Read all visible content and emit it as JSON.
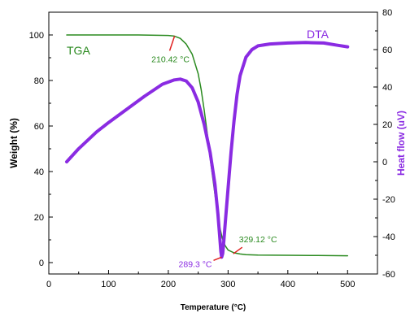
{
  "chart_data": {
    "type": "line",
    "xlabel": "Temperature (°C)",
    "ylabel": "Weight (%)",
    "y2label": "Heat flow (uV)",
    "xlim": [
      0,
      550
    ],
    "ylim": [
      -5,
      110
    ],
    "y2lim": [
      -60,
      80
    ],
    "xticks": [
      "0",
      "100",
      "200",
      "300",
      "400",
      "500"
    ],
    "yticks": [
      "0",
      "20",
      "40",
      "60",
      "80",
      "100"
    ],
    "y2ticks": [
      "-60",
      "-40",
      "-20",
      "0",
      "20",
      "40",
      "60",
      "80"
    ],
    "grid": false,
    "colors": {
      "tga": "#2a8a1f",
      "dta": "#8a2be2",
      "annotation_pointer": "#e02020"
    },
    "series": [
      {
        "name": "TGA",
        "axis": "left",
        "x": [
          30,
          100,
          150,
          200,
          210,
          220,
          230,
          240,
          250,
          255,
          260,
          265,
          270,
          275,
          280,
          285,
          290,
          295,
          300,
          310,
          320,
          330,
          350,
          400,
          450,
          500
        ],
        "y": [
          100,
          100,
          100,
          99.8,
          99.5,
          98.5,
          96,
          91.5,
          83,
          76,
          67,
          57,
          46,
          36,
          26,
          17,
          11,
          7.5,
          5.5,
          4.3,
          3.8,
          3.5,
          3.3,
          3.2,
          3.1,
          3.0
        ]
      },
      {
        "name": "DTA",
        "axis": "right",
        "x": [
          30,
          50,
          80,
          100,
          130,
          160,
          190,
          210,
          220,
          230,
          240,
          250,
          260,
          270,
          278,
          283,
          286,
          288,
          289.3,
          291,
          293,
          296,
          300,
          305,
          310,
          315,
          320,
          330,
          340,
          350,
          370,
          400,
          430,
          460,
          480,
          500
        ],
        "y": [
          0,
          7,
          16,
          21,
          28,
          35,
          41.5,
          43.8,
          44.2,
          43.2,
          39.5,
          32,
          20,
          5,
          -12,
          -28,
          -40,
          -48,
          -51,
          -49,
          -42,
          -30,
          -14,
          5,
          22,
          36,
          46,
          56,
          60,
          62,
          63,
          63.5,
          63.8,
          63.5,
          62.5,
          61.5
        ]
      }
    ],
    "annotations": [
      {
        "text": "TGA",
        "series": "TGA"
      },
      {
        "text": "DTA",
        "series": "DTA"
      },
      {
        "text": "210.42 °C",
        "x": 210.42,
        "y": 99.5,
        "axis": "left"
      },
      {
        "text": "289.3 °C",
        "x": 289.3,
        "y": -51,
        "axis": "right"
      },
      {
        "text": "329.12 °C",
        "x": 329.12,
        "y": 3.5,
        "axis": "left"
      }
    ]
  }
}
